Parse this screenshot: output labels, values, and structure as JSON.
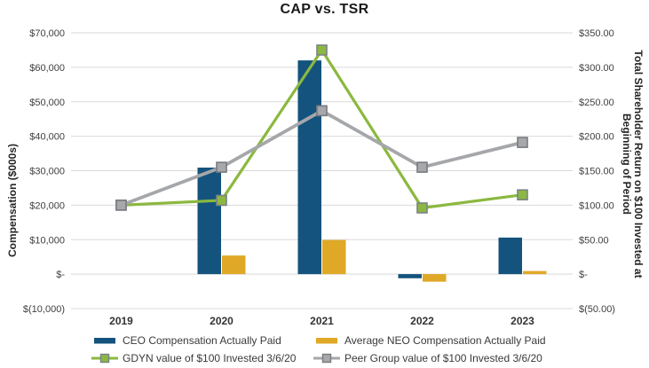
{
  "chart_data": {
    "type": "combo-bar-line",
    "title": "CAP vs. TSR",
    "categories": [
      "2019",
      "2020",
      "2021",
      "2022",
      "2023"
    ],
    "grid": true,
    "gridline_color": "#D9D9D9",
    "tick_text_color": "#404040",
    "legend_position": "bottom",
    "left_axis": {
      "title": "Compensation ($000s)",
      "min": -10000,
      "max": 70000,
      "ticks": [
        {
          "value": 70000,
          "label": "$70,000"
        },
        {
          "value": 60000,
          "label": "$60,000"
        },
        {
          "value": 50000,
          "label": "$50,000"
        },
        {
          "value": 40000,
          "label": "$40,000"
        },
        {
          "value": 30000,
          "label": "$30,000"
        },
        {
          "value": 20000,
          "label": "$20,000"
        },
        {
          "value": 10000,
          "label": "$10,000"
        },
        {
          "value": 0,
          "label": "$-"
        },
        {
          "value": -10000,
          "label": "$(10,000)"
        }
      ]
    },
    "right_axis": {
      "title_line1": "Total Shareholder Return on $100 Invested at",
      "title_line2": "Beginning of Period",
      "min": -50,
      "max": 350,
      "ticks": [
        {
          "value": 350,
          "label": "$350.00"
        },
        {
          "value": 300,
          "label": "$300.00"
        },
        {
          "value": 250,
          "label": "$250.00"
        },
        {
          "value": 200,
          "label": "$200.00"
        },
        {
          "value": 150,
          "label": "$150.00"
        },
        {
          "value": 100,
          "label": "$100.00"
        },
        {
          "value": 50,
          "label": "$50.00"
        },
        {
          "value": 0,
          "label": "$-"
        },
        {
          "value": -50,
          "label": "$(50.00)"
        }
      ]
    },
    "bar_series": [
      {
        "id": "ceo-cap",
        "name": "CEO Compensation Actually Paid",
        "axis": "left",
        "color": "#14537D",
        "values": [
          null,
          30900,
          62000,
          -1200,
          10600
        ]
      },
      {
        "id": "neo-cap",
        "name": "Average NEO Compensation Actually Paid",
        "axis": "left",
        "color": "#DFA827",
        "values": [
          null,
          5400,
          9900,
          -2200,
          900
        ]
      }
    ],
    "line_series": [
      {
        "id": "gdyn-tsr",
        "name": "GDYN value of $100 Invested 3/6/20",
        "axis": "right",
        "color": "#8BB840",
        "marker_fill": "#8BB840",
        "marker_border": "#7C8286",
        "line_width": 3.2,
        "values": [
          100,
          107,
          325,
          96,
          115
        ]
      },
      {
        "id": "peer-tsr",
        "name": "Peer Group value of $100 Invested 3/6/20",
        "axis": "right",
        "color": "#A5A7AA",
        "marker_fill": "#A6A8AB",
        "marker_border": "#797B7E",
        "line_width": 3.8,
        "values": [
          100,
          155,
          237,
          155,
          191
        ]
      }
    ],
    "legend": [
      {
        "id": "ceo-cap",
        "type": "bar",
        "label": "CEO Compensation Actually Paid",
        "color": "#14537D"
      },
      {
        "id": "neo-cap",
        "type": "bar",
        "label": "Average NEO Compensation Actually Paid",
        "color": "#DFA827"
      },
      {
        "id": "gdyn-tsr",
        "type": "line",
        "label": "GDYN value of $100 Invested 3/6/20",
        "color": "#8BB840",
        "marker_fill": "#8BB840",
        "marker_border": "#7C8286"
      },
      {
        "id": "peer-tsr",
        "type": "line",
        "label": "Peer Group value of $100 Invested 3/6/20",
        "color": "#A5A7AA",
        "marker_fill": "#A6A8AB",
        "marker_border": "#797B7E"
      }
    ]
  }
}
